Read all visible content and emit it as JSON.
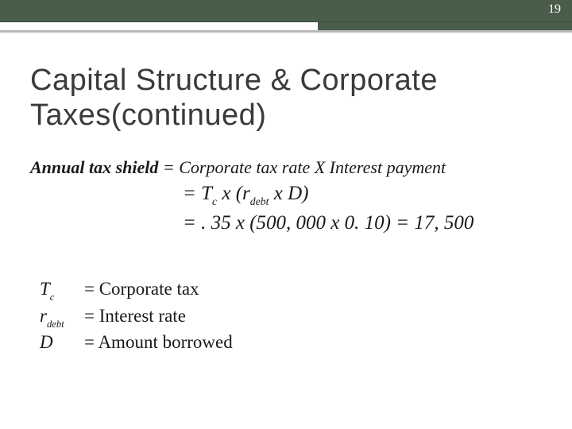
{
  "page_number": "19",
  "title": "Capital Structure & Corporate Taxes(continued)",
  "formula": {
    "lhs_bold": "Annual tax shield",
    "eq": " = ",
    "rhs1": "Corporate tax rate X Interest payment",
    "line2_pre": "= T",
    "line2_sub1": "c",
    "line2_mid": " x (r",
    "line2_sub2": "debt",
    "line2_post": " x D)",
    "line3": "= . 35 x (500, 000 x 0. 10) = 17, 500"
  },
  "definitions": {
    "d1_sym_pre": "T",
    "d1_sym_sub": "c",
    "d1_val": "= Corporate tax",
    "d2_sym_pre": "r",
    "d2_sym_sub": "debt",
    "d2_val": "= Interest rate",
    "d3_sym": "D",
    "d3_val": "= Amount borrowed"
  },
  "colors": {
    "header_bg": "#4a5c4a",
    "line_gray": "#b8b8b8",
    "text": "#1a1a1a",
    "title_text": "#3a3a3a"
  }
}
